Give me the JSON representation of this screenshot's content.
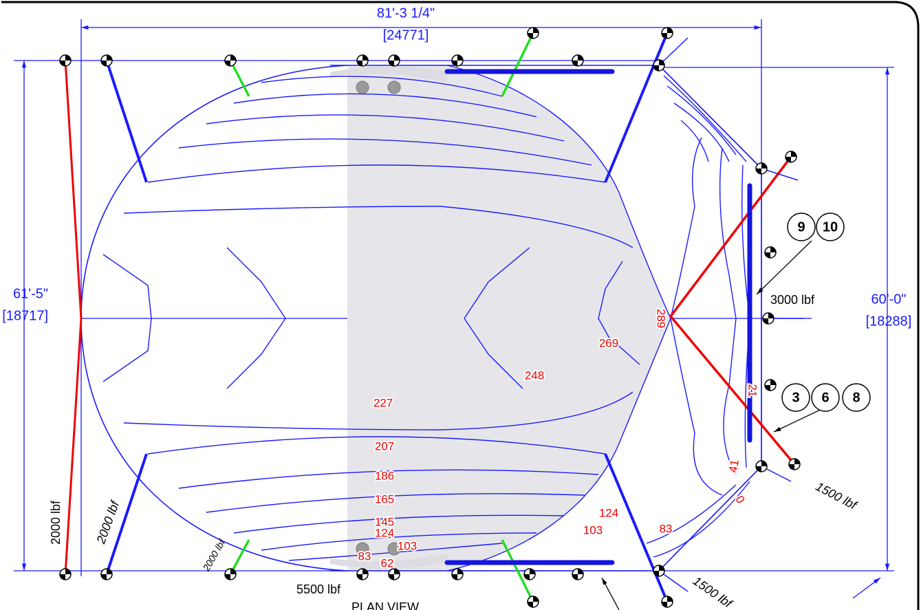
{
  "dimensions": {
    "width": "81'-3 1/4\"",
    "width_mm": "[24771]",
    "left_height": "61'-5\"",
    "left_height_mm": "[18717]",
    "right_height": "60'-0\"",
    "right_height_mm": "[18288]"
  },
  "forces": [
    "3000 lbf",
    "1500 lbf",
    "1500 lbf",
    "5500 lbf",
    "2000 lbf",
    "2000 lbf",
    "2000 lbf"
  ],
  "callouts": [
    "9",
    "10",
    "3",
    "6",
    "8"
  ],
  "contours": [
    "289",
    "269",
    "248",
    "227",
    "207",
    "186",
    "165",
    "145",
    "124",
    "103",
    "83",
    "62",
    "124",
    "103",
    "83",
    "41",
    "0",
    "21"
  ],
  "title": "PLAN VIEW"
}
